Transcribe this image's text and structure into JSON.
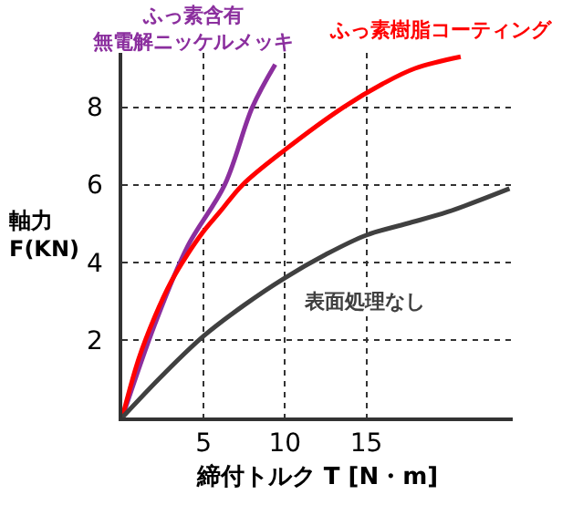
{
  "chart_data": {
    "type": "line",
    "xlabel": "締付トルク T [N・m]",
    "ylabel": "軸力\nF(KN)",
    "xlim": [
      0,
      24
    ],
    "ylim": [
      0,
      9.4
    ],
    "xticks": [
      5,
      10,
      15
    ],
    "yticks": [
      2,
      4,
      6,
      8
    ],
    "grid": true,
    "legend": false,
    "line_style": "solid",
    "marker": "none",
    "series": [
      {
        "name": "ふっ素含有無電解ニッケルメッキ",
        "color": "#8b2f9e",
        "x": [
          0,
          2,
          4,
          6.3,
          8,
          9.4
        ],
        "values": [
          0,
          2.4,
          4.4,
          6,
          8,
          9.1
        ]
      },
      {
        "name": "ふっ素樹脂コーティング",
        "color": "#ff0000",
        "x": [
          0,
          1,
          2,
          3,
          4,
          5,
          6,
          7.4,
          10,
          13.6,
          16,
          18,
          20.8
        ],
        "values": [
          0,
          1.5,
          2.6,
          3.5,
          4.2,
          4.8,
          5.3,
          6,
          6.9,
          8,
          8.6,
          9,
          9.3
        ]
      },
      {
        "name": "表面処理なし",
        "color": "#404040",
        "x": [
          0,
          2.5,
          5,
          7.5,
          10,
          12.5,
          15,
          17.5,
          20,
          23.8
        ],
        "values": [
          0,
          1.1,
          2.1,
          2.9,
          3.6,
          4.2,
          4.7,
          5,
          5.3,
          5.9
        ]
      }
    ]
  }
}
